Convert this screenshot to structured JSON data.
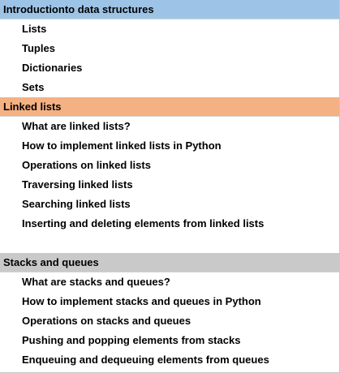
{
  "sections": [
    {
      "title": "Introductionto data structures",
      "color": "#9dc3e6",
      "items": [
        "Lists",
        "Tuples",
        "Dictionaries",
        "Sets"
      ]
    },
    {
      "title": "Linked lists",
      "color": "#f4b183",
      "items": [
        "What are linked lists?",
        "How to implement linked lists in Python",
        "Operations on linked lists",
        "Traversing linked lists",
        "Searching linked lists",
        "Inserting and deleting elements from linked lists"
      ]
    },
    {
      "title": "Stacks and queues",
      "color": "#c9c9c9",
      "items": [
        "What are stacks and queues?",
        "How to implement stacks and queues in Python",
        "Operations on stacks and queues",
        "Pushing and popping elements from stacks",
        "Enqueuing and dequeuing elements from queues"
      ]
    }
  ]
}
